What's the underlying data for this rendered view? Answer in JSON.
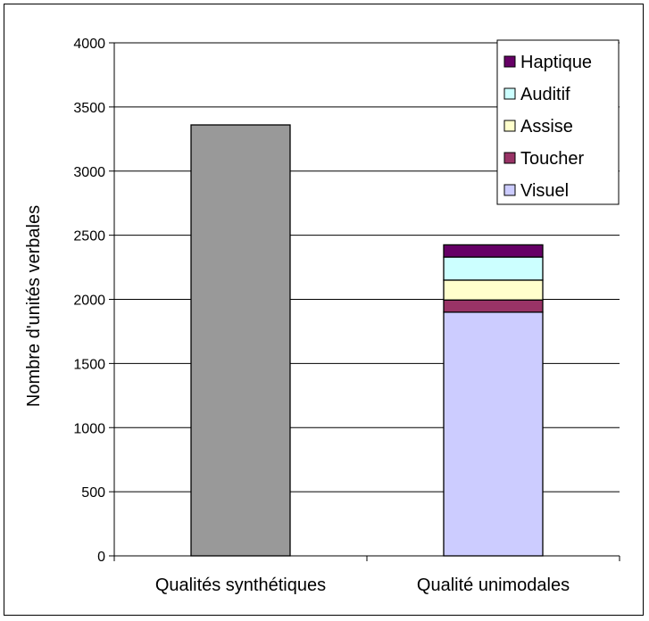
{
  "chart_data": {
    "type": "bar",
    "stacked": true,
    "title": "",
    "xlabel": "",
    "ylabel": "Nombre d'unités verbales",
    "ylim": [
      0,
      4000
    ],
    "yticks": [
      0,
      500,
      1000,
      1500,
      2000,
      2500,
      3000,
      3500,
      4000
    ],
    "grid": true,
    "legend_position": "top-right",
    "categories": [
      "Qualités synthétiques",
      "Qualité unimodales"
    ],
    "series": [
      {
        "name": "",
        "color": "#999999",
        "values": [
          3360,
          0
        ]
      },
      {
        "name": "Visuel",
        "color": "#ccccff",
        "values": [
          0,
          1900
        ]
      },
      {
        "name": "Toucher",
        "color": "#993366",
        "values": [
          0,
          95
        ]
      },
      {
        "name": "Assise",
        "color": "#ffffcc",
        "values": [
          0,
          155
        ]
      },
      {
        "name": "Auditif",
        "color": "#ccffff",
        "values": [
          0,
          180
        ]
      },
      {
        "name": "Haptique",
        "color": "#660066",
        "values": [
          0,
          95
        ]
      }
    ],
    "legend_order": [
      "Haptique",
      "Auditif",
      "Assise",
      "Toucher",
      "Visuel"
    ]
  }
}
